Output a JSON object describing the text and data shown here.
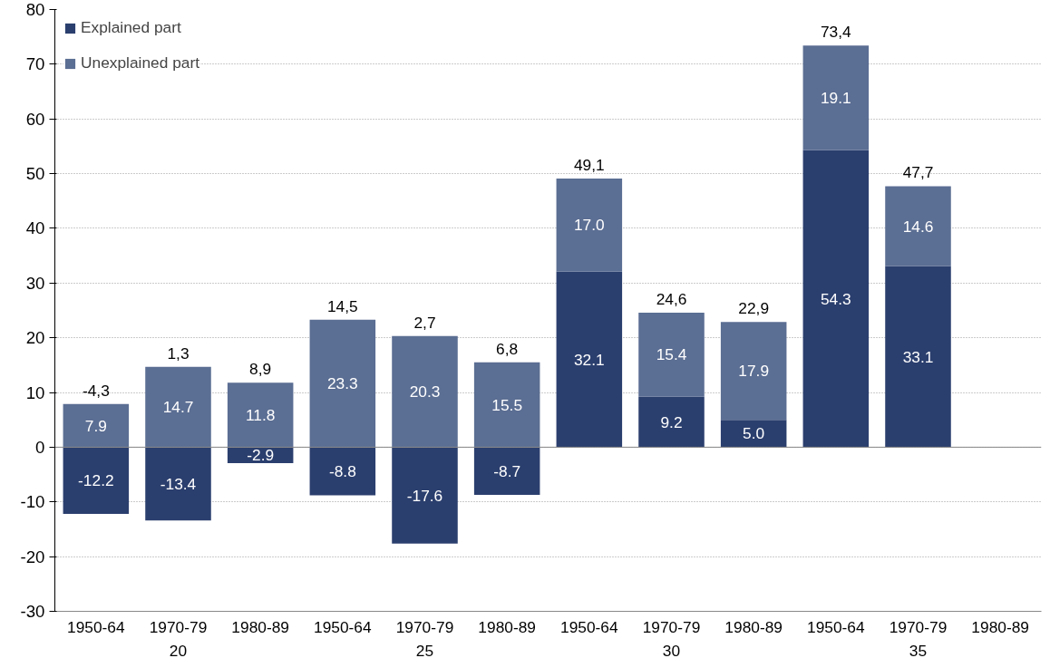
{
  "chart_data": {
    "type": "bar",
    "stacked": true,
    "categories": [
      "1950-64",
      "1970-79",
      "1980-89",
      "1950-64",
      "1970-79",
      "1980-89",
      "1950-64",
      "1970-79",
      "1980-89",
      "1950-64",
      "1970-79",
      "1980-89"
    ],
    "annotations": [
      "20",
      "25",
      "30",
      "35"
    ],
    "series": [
      {
        "name": "Explained part",
        "color": "#2b3f6e",
        "values": [
          -12.2,
          -13.4,
          -2.9,
          -8.8,
          -17.6,
          -8.7,
          32.1,
          9.2,
          5.0,
          54.3,
          33.1,
          null
        ],
        "value_labels": [
          "-12.2",
          "-13.4",
          "-2.9",
          "-8.8",
          "-17.6",
          "-8.7",
          "32.1",
          "9.2",
          "5.0",
          "54.3",
          "33.1",
          null
        ]
      },
      {
        "name": "Unexplained part",
        "color": "#5b6e93",
        "values": [
          7.9,
          14.7,
          11.8,
          23.3,
          20.3,
          15.5,
          17.0,
          15.4,
          17.9,
          19.1,
          14.6,
          null
        ],
        "value_labels": [
          "7.9",
          "14.7",
          "11.8",
          "23.3",
          "20.3",
          "15.5",
          "17.0",
          "15.4",
          "17.9",
          "19.1",
          "14.6",
          null
        ]
      }
    ],
    "totals": [
      "-4,3",
      "1,3",
      "8,9",
      "14,5",
      "2,7",
      "6,8",
      "49,1",
      "24,6",
      "22,9",
      "73,4",
      "47,7",
      null
    ],
    "ylim": [
      -30,
      80
    ],
    "yticks": [
      -30,
      -20,
      -10,
      0,
      10,
      20,
      30,
      40,
      50,
      60,
      70,
      80
    ],
    "grid": "y",
    "legend": "top left"
  }
}
